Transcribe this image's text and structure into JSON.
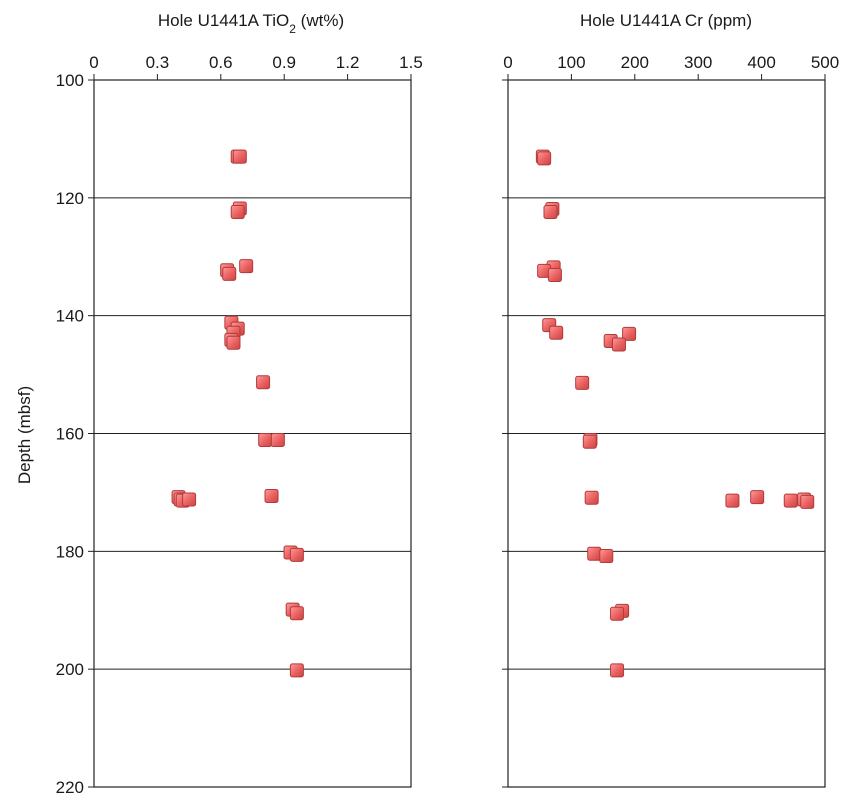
{
  "chart_data": {
    "type": "scatter",
    "ylabel": "Depth (mbsf)",
    "ylim": [
      100,
      220
    ],
    "y_inverted": true,
    "y_ticks": [
      "100",
      "120",
      "140",
      "160",
      "180",
      "200",
      "220"
    ],
    "grid": "horizontal lines at y ticks",
    "marker_color": "#e8605f",
    "panels": [
      {
        "title_main": "Hole U1441A TiO",
        "title_sub": "2",
        "title_tail": " (wt%)",
        "xlim": [
          0,
          1.5
        ],
        "x_ticks": [
          "0",
          "0.3",
          "0.6",
          "0.9",
          "1.2",
          "1.5"
        ],
        "points": [
          {
            "x": 0.68,
            "y": 113
          },
          {
            "x": 0.69,
            "y": 113
          },
          {
            "x": 0.69,
            "y": 121.8
          },
          {
            "x": 0.68,
            "y": 122.4
          },
          {
            "x": 0.72,
            "y": 131.6
          },
          {
            "x": 0.63,
            "y": 132.3
          },
          {
            "x": 0.64,
            "y": 132.9
          },
          {
            "x": 0.65,
            "y": 141.2
          },
          {
            "x": 0.68,
            "y": 142.2
          },
          {
            "x": 0.66,
            "y": 142.9
          },
          {
            "x": 0.65,
            "y": 144.1
          },
          {
            "x": 0.66,
            "y": 144.6
          },
          {
            "x": 0.8,
            "y": 151.3
          },
          {
            "x": 0.81,
            "y": 161.1
          },
          {
            "x": 0.87,
            "y": 161.1
          },
          {
            "x": 0.84,
            "y": 170.6
          },
          {
            "x": 0.4,
            "y": 170.8
          },
          {
            "x": 0.41,
            "y": 171.2
          },
          {
            "x": 0.42,
            "y": 171.4
          },
          {
            "x": 0.45,
            "y": 171.2
          },
          {
            "x": 0.93,
            "y": 180.2
          },
          {
            "x": 0.96,
            "y": 180.6
          },
          {
            "x": 0.94,
            "y": 189.9
          },
          {
            "x": 0.96,
            "y": 190.5
          },
          {
            "x": 0.96,
            "y": 200.2
          }
        ]
      },
      {
        "title_main": "Hole U1441A Cr (ppm)",
        "title_sub": "",
        "title_tail": "",
        "xlim": [
          0,
          500
        ],
        "x_ticks": [
          "0",
          "100",
          "200",
          "300",
          "400",
          "500"
        ],
        "points": [
          {
            "x": 55,
            "y": 113
          },
          {
            "x": 57,
            "y": 113.3
          },
          {
            "x": 70,
            "y": 121.9
          },
          {
            "x": 67,
            "y": 122.4
          },
          {
            "x": 72,
            "y": 131.8
          },
          {
            "x": 57,
            "y": 132.4
          },
          {
            "x": 74,
            "y": 133.1
          },
          {
            "x": 65,
            "y": 141.6
          },
          {
            "x": 76,
            "y": 142.9
          },
          {
            "x": 191,
            "y": 143.1
          },
          {
            "x": 162,
            "y": 144.3
          },
          {
            "x": 175,
            "y": 144.9
          },
          {
            "x": 117,
            "y": 151.4
          },
          {
            "x": 130,
            "y": 161.1
          },
          {
            "x": 129,
            "y": 161.4
          },
          {
            "x": 132,
            "y": 170.9
          },
          {
            "x": 393,
            "y": 170.8
          },
          {
            "x": 354,
            "y": 171.4
          },
          {
            "x": 446,
            "y": 171.4
          },
          {
            "x": 467,
            "y": 171.2
          },
          {
            "x": 472,
            "y": 171.6
          },
          {
            "x": 136,
            "y": 180.4
          },
          {
            "x": 155,
            "y": 180.8
          },
          {
            "x": 180,
            "y": 190.1
          },
          {
            "x": 172,
            "y": 190.6
          },
          {
            "x": 172,
            "y": 200.2
          }
        ]
      }
    ]
  }
}
